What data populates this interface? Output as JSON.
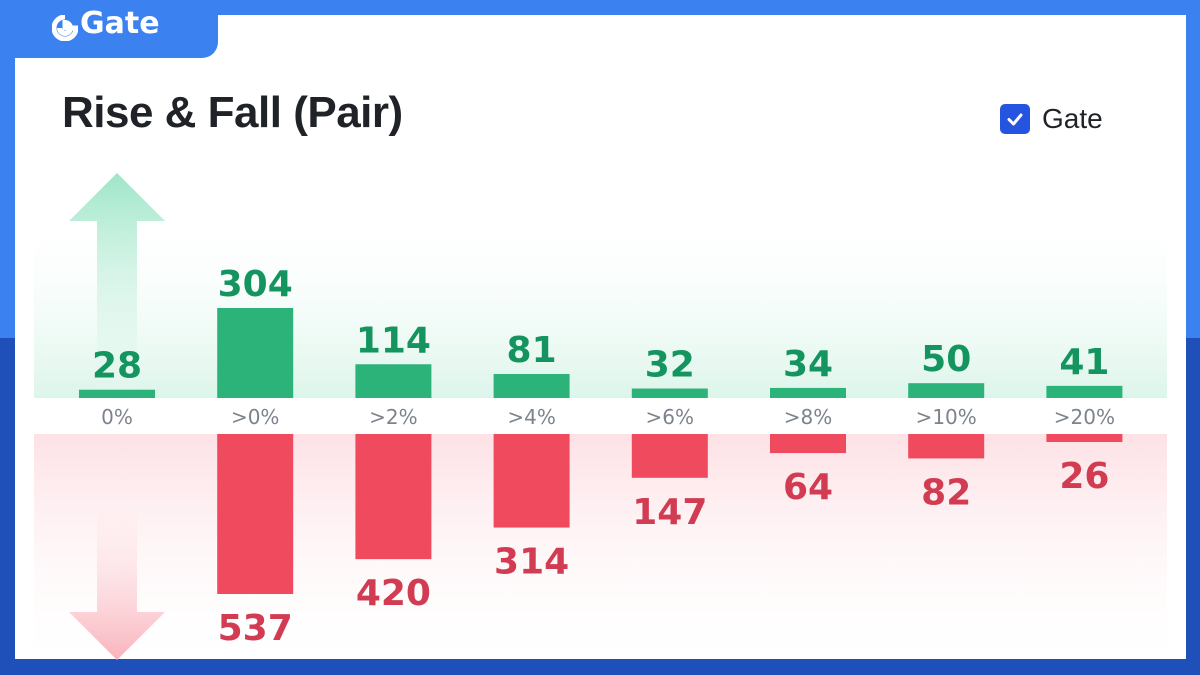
{
  "brand": {
    "logo_text": "Gate"
  },
  "legend": {
    "label": "Gate",
    "checked": true,
    "check_color": "#2454e0"
  },
  "colors": {
    "rise": "#2cb37a",
    "rise_text": "#14955f",
    "fall": "#f04a5e",
    "fall_text": "#d23c52",
    "band_rise": "#d9f5e8",
    "band_fall": "#fde3e6"
  },
  "chart_data": {
    "type": "bar",
    "title": "Rise & Fall (Pair)",
    "categories": [
      "0%",
      ">0%",
      ">2%",
      ">4%",
      ">6%",
      ">8%",
      ">10%",
      ">20%"
    ],
    "series": [
      {
        "values": [
          28,
          304,
          114,
          81,
          32,
          34,
          50,
          41
        ]
      },
      {
        "values": [
          0,
          537,
          420,
          314,
          147,
          64,
          82,
          26
        ]
      }
    ],
    "value_labels_rise": [
      "28",
      "304",
      "114",
      "81",
      "32",
      "34",
      "50",
      "41"
    ],
    "value_labels_fall": [
      "",
      "537",
      "420",
      "314",
      "147",
      "64",
      "82",
      "26"
    ],
    "legend_position": "top-right",
    "grid": false
  }
}
